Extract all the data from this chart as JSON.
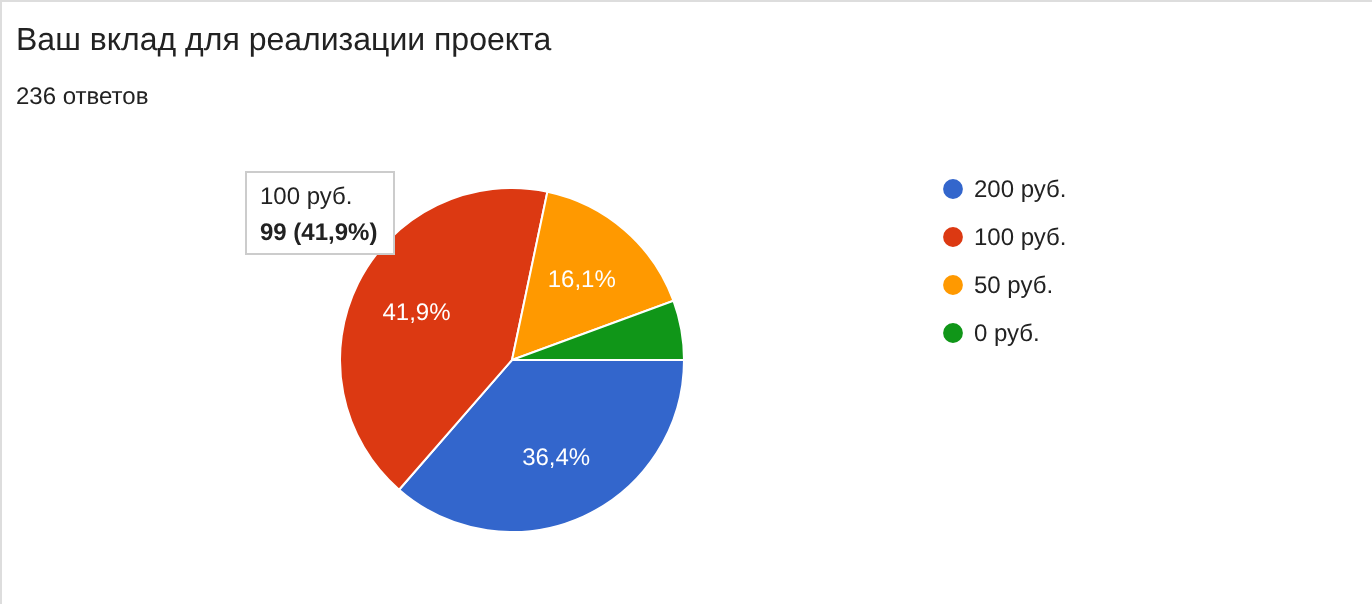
{
  "chart_data": {
    "type": "pie",
    "title": "Ваш вклад для реализации проекта",
    "subtitle": "236 ответов",
    "categories": [
      "200 руб.",
      "100 руб.",
      "50 руб.",
      "0 руб."
    ],
    "values": [
      36.4,
      41.9,
      16.1,
      5.6
    ],
    "colors": [
      "#3366cc",
      "#dc3912",
      "#ff9900",
      "#109618"
    ],
    "value_labels": [
      "36,4%",
      "41,9%",
      "16,1%",
      null
    ],
    "legend": "right",
    "annotations": [
      "100 руб.",
      "99 (41,9%)"
    ]
  }
}
